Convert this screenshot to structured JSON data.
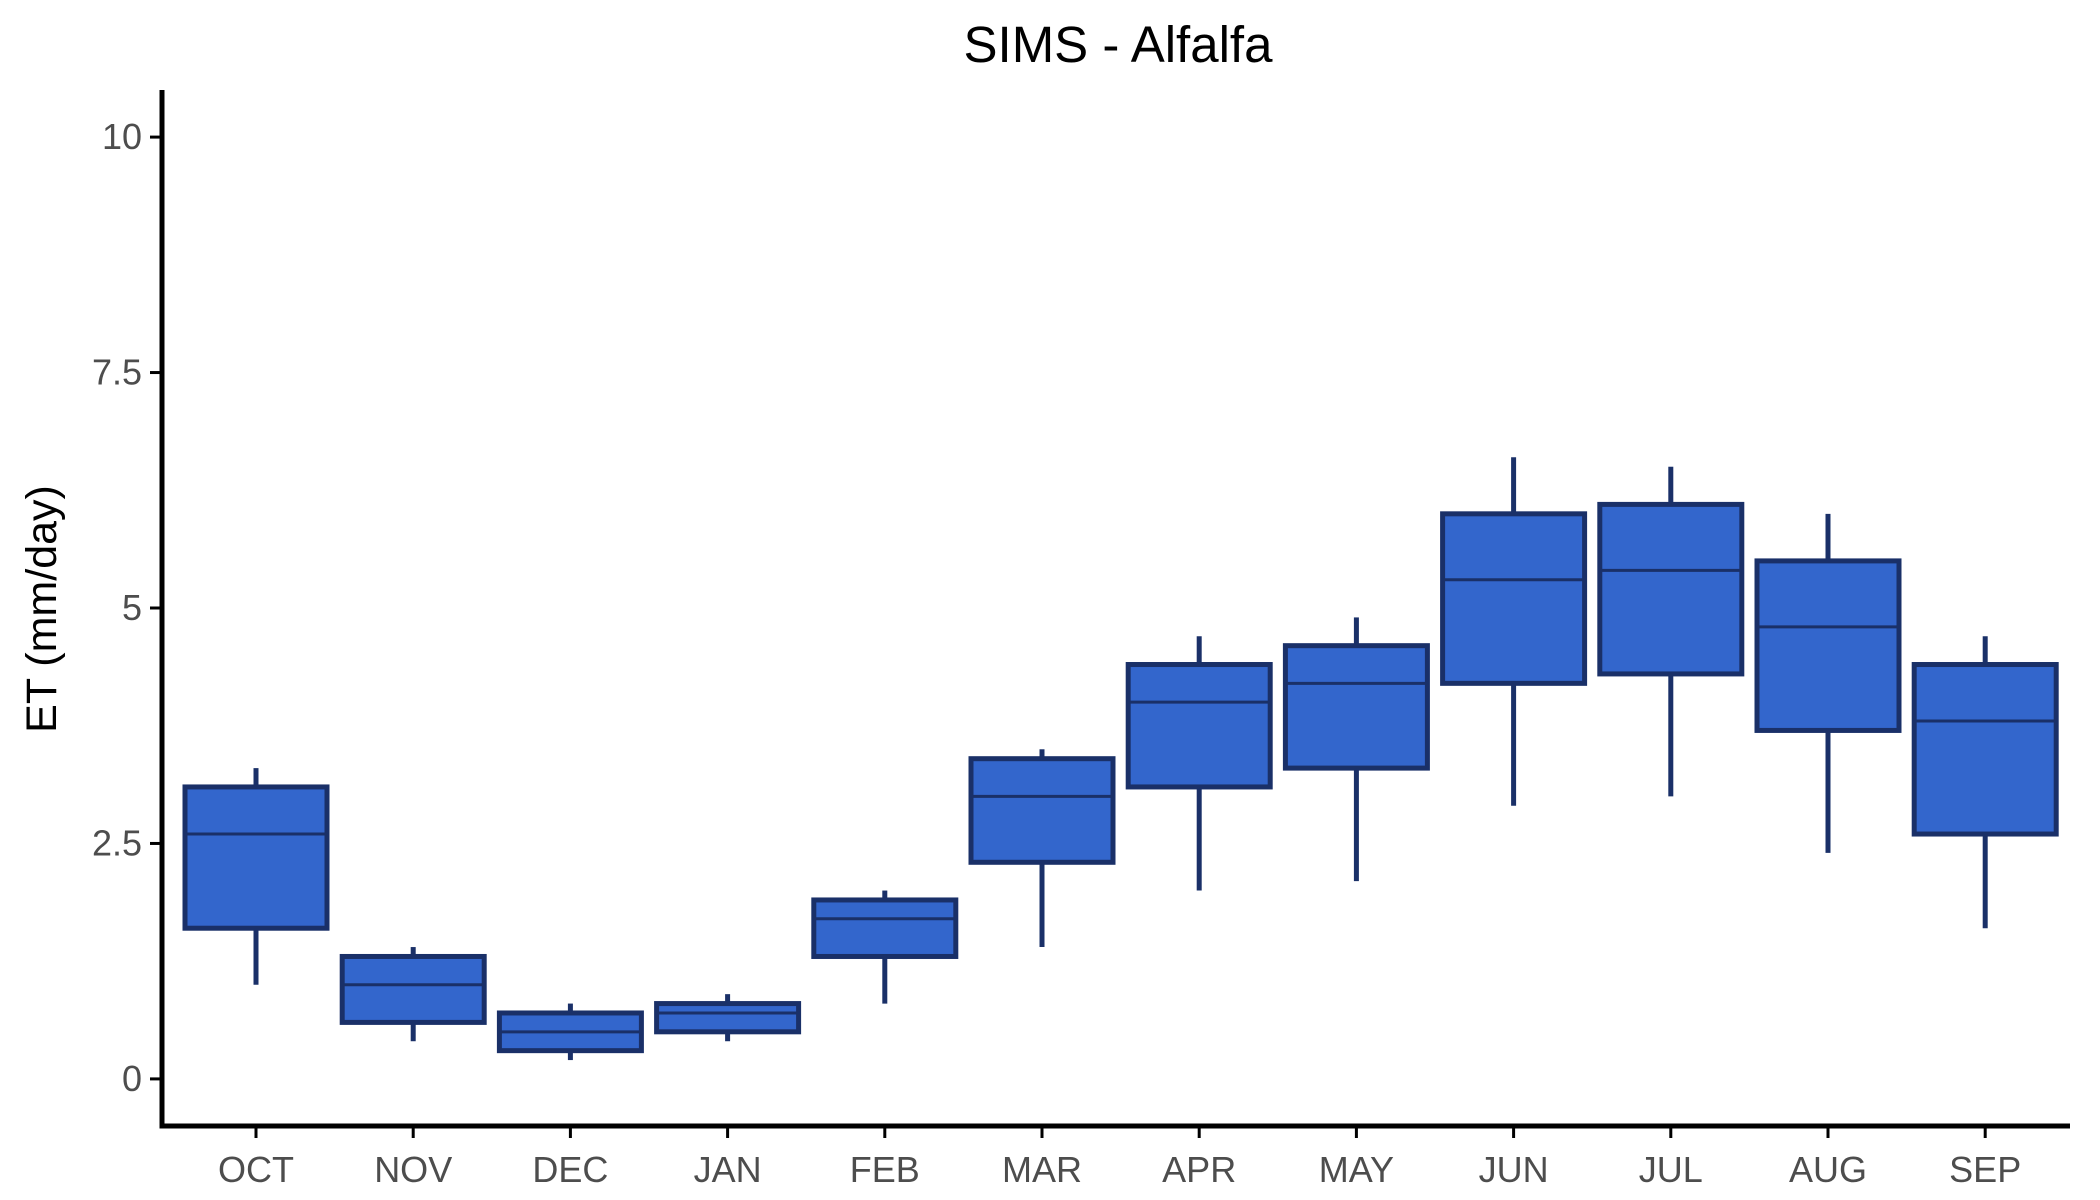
{
  "chart_data": {
    "type": "boxplot",
    "title": "SIMS - Alfalfa",
    "xlabel": "",
    "ylabel": "ET (mm/day)",
    "ylim": [
      -0.5,
      10.5
    ],
    "y_ticks": [
      0,
      2.5,
      5,
      7.5,
      10
    ],
    "y_tick_labels": [
      "0",
      "2.5",
      "5",
      "7.5",
      "10"
    ],
    "grid": false,
    "legend": "none",
    "colors": {
      "box_fill": "#3366cc",
      "box_stroke": "#1a3068",
      "axis": "#000000",
      "tick_label": "#4d4d4d"
    },
    "categories": [
      "OCT",
      "NOV",
      "DEC",
      "JAN",
      "FEB",
      "MAR",
      "APR",
      "MAY",
      "JUN",
      "JUL",
      "AUG",
      "SEP"
    ],
    "boxes": [
      {
        "min": 1.0,
        "q1": 1.6,
        "median": 2.6,
        "q3": 3.1,
        "max": 3.3
      },
      {
        "min": 0.4,
        "q1": 0.6,
        "median": 1.0,
        "q3": 1.3,
        "max": 1.4
      },
      {
        "min": 0.2,
        "q1": 0.3,
        "median": 0.5,
        "q3": 0.7,
        "max": 0.8
      },
      {
        "min": 0.4,
        "q1": 0.5,
        "median": 0.7,
        "q3": 0.8,
        "max": 0.9
      },
      {
        "min": 0.8,
        "q1": 1.3,
        "median": 1.7,
        "q3": 1.9,
        "max": 2.0
      },
      {
        "min": 1.4,
        "q1": 2.3,
        "median": 3.0,
        "q3": 3.4,
        "max": 3.5
      },
      {
        "min": 2.0,
        "q1": 3.1,
        "median": 4.0,
        "q3": 4.4,
        "max": 4.7
      },
      {
        "min": 2.1,
        "q1": 3.3,
        "median": 4.2,
        "q3": 4.6,
        "max": 4.9
      },
      {
        "min": 2.9,
        "q1": 4.2,
        "median": 5.3,
        "q3": 6.0,
        "max": 6.6
      },
      {
        "min": 3.0,
        "q1": 4.3,
        "median": 5.4,
        "q3": 6.1,
        "max": 6.5
      },
      {
        "min": 2.4,
        "q1": 3.7,
        "median": 4.8,
        "q3": 5.5,
        "max": 6.0
      },
      {
        "min": 1.6,
        "q1": 2.6,
        "median": 3.8,
        "q3": 4.4,
        "max": 4.7
      }
    ]
  }
}
